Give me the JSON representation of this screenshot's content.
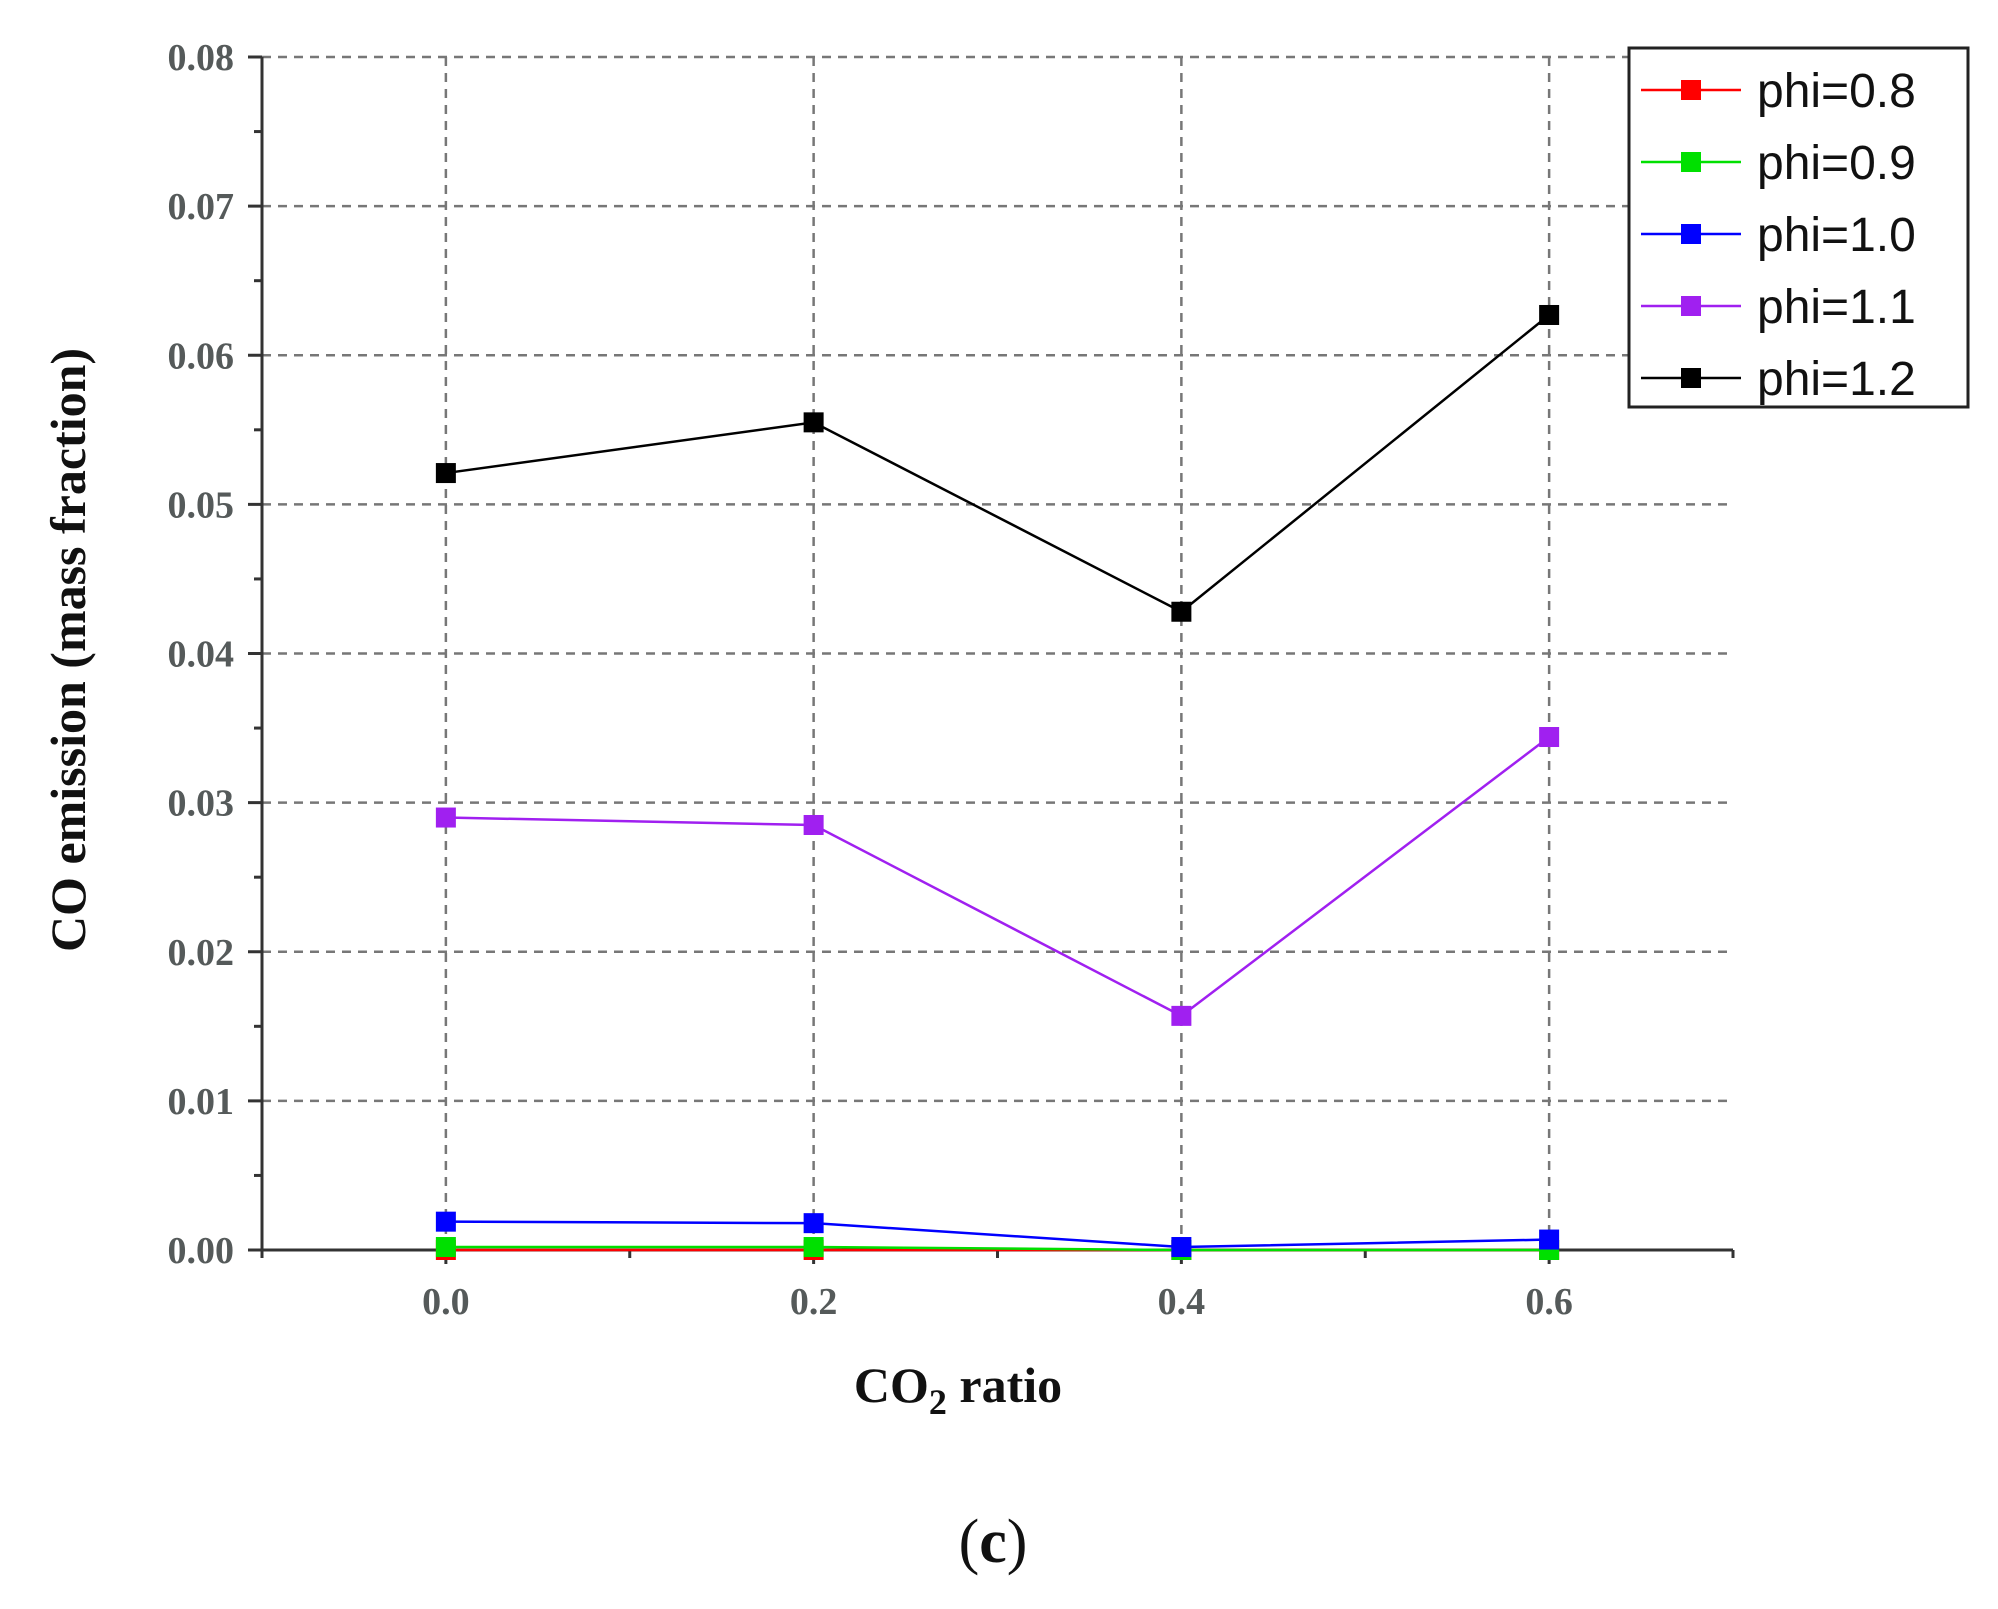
{
  "chart_data": {
    "type": "line",
    "x": [
      0.0,
      0.2,
      0.4,
      0.6
    ],
    "xticks": [
      "0.0",
      "0.2",
      "0.4",
      "0.6"
    ],
    "yticks": [
      "0.00",
      "0.01",
      "0.02",
      "0.03",
      "0.04",
      "0.05",
      "0.06",
      "0.07",
      "0.08"
    ],
    "xlim": [
      -0.1,
      0.7
    ],
    "ylim": [
      0.0,
      0.08
    ],
    "xlabel_main": "CO",
    "xlabel_sub": "2",
    "xlabel_rest": " ratio",
    "ylabel": "CO emission (mass fraction)",
    "grid": true,
    "legend_position": "top-right",
    "series": [
      {
        "name": "phi=0.8",
        "color": "#ff0000",
        "values": [
          0.0,
          0.0,
          0.0,
          0.0
        ]
      },
      {
        "name": "phi=0.9",
        "color": "#00e000",
        "values": [
          0.0002,
          0.0002,
          0.0,
          0.0
        ]
      },
      {
        "name": "phi=1.0",
        "color": "#0000ff",
        "values": [
          0.0019,
          0.0018,
          0.0002,
          0.0007
        ]
      },
      {
        "name": "phi=1.1",
        "color": "#a020f0",
        "values": [
          0.029,
          0.0285,
          0.0157,
          0.0344
        ]
      },
      {
        "name": "phi=1.2",
        "color": "#000000",
        "values": [
          0.0521,
          0.0555,
          0.0428,
          0.0627
        ]
      }
    ]
  },
  "caption": {
    "open": "(",
    "letter": "c",
    "close": ")"
  }
}
